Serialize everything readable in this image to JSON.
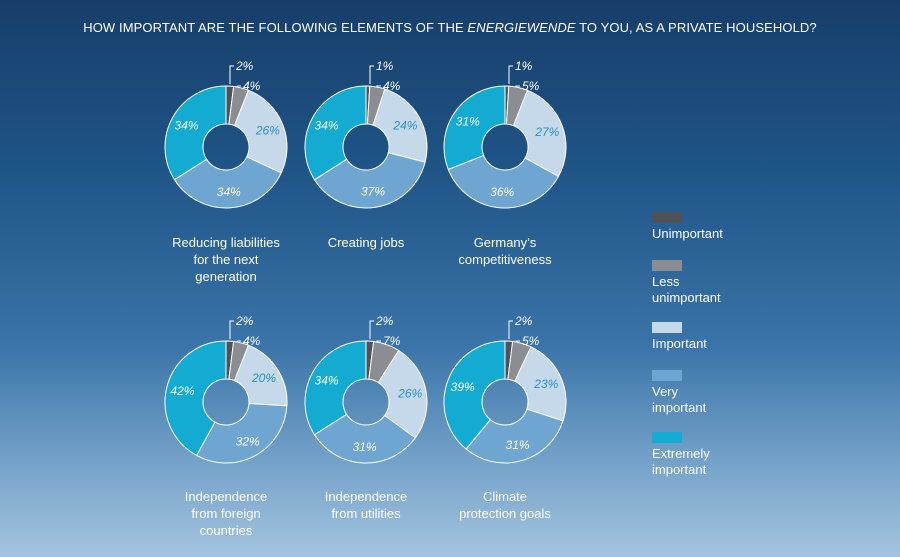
{
  "title": {
    "before": "HOW IMPORTANT ARE THE FOLLOWING ELEMENTS OF THE ",
    "emphasis": "ENERGIEWENDE",
    "after": " TO YOU, AS A PRIVATE HOUSEHOLD?"
  },
  "legend": [
    {
      "name": "Unimportant",
      "color": "#4f5258"
    },
    {
      "name": "Less\nunimportant",
      "color": "#8a8d92"
    },
    {
      "name": "Important",
      "color": "#c5d9ea"
    },
    {
      "name": "Very\nimportant",
      "color": "#6ea6d1"
    },
    {
      "name": "Extremely\nimportant",
      "color": "#13abd1"
    }
  ],
  "chart_data": {
    "type": "pie",
    "series_names": [
      "Unimportant",
      "Less unimportant",
      "Important",
      "Very important",
      "Extremely important"
    ],
    "colors": [
      "#4f5258",
      "#8a8d92",
      "#c5d9ea",
      "#6ea6d1",
      "#13abd1"
    ],
    "charts": [
      {
        "label": "Reducing liabilities\nfor the next\ngeneration",
        "values": [
          2,
          4,
          26,
          34,
          34
        ],
        "value_labels": [
          "2%",
          "4%",
          "26%",
          "34%",
          "34%"
        ]
      },
      {
        "label": "Creating jobs",
        "values": [
          1,
          4,
          24,
          37,
          34
        ],
        "value_labels": [
          "1%",
          "4%",
          "24%",
          "37%",
          "34%"
        ]
      },
      {
        "label": "Germany’s\ncompetitiveness",
        "values": [
          1,
          5,
          27,
          36,
          31
        ],
        "value_labels": [
          "1%",
          "5%",
          "27%",
          "36%",
          "31%"
        ]
      },
      {
        "label": "Independence\nfrom foreign\ncountries",
        "values": [
          2,
          4,
          20,
          32,
          42
        ],
        "value_labels": [
          "2%",
          "4%",
          "20%",
          "32%",
          "42%"
        ]
      },
      {
        "label": "Independence\nfrom utilities",
        "values": [
          2,
          7,
          26,
          31,
          34
        ],
        "value_labels": [
          "2%",
          "7%",
          "26%",
          "31%",
          "34%"
        ]
      },
      {
        "label": "Climate\nprotection goals",
        "values": [
          2,
          5,
          23,
          31,
          39
        ],
        "value_labels": [
          "2%",
          "5%",
          "23%",
          "31%",
          "39%"
        ]
      }
    ]
  }
}
